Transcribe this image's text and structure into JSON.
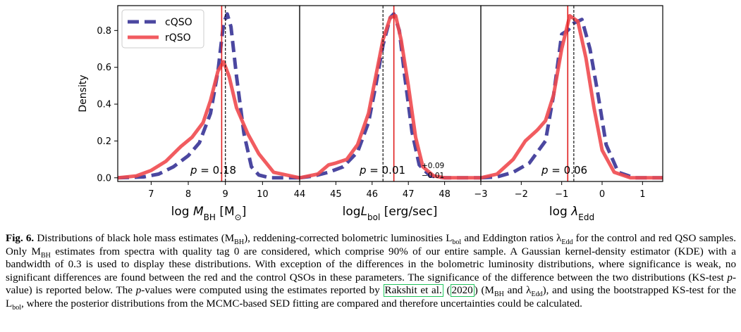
{
  "chart_data": [
    {
      "type": "line",
      "xlabel": "log M_BH [M_sun]",
      "ylabel": "Density",
      "xlim": [
        6.1,
        11.0
      ],
      "ylim": [
        -0.02,
        0.935
      ],
      "xticks": [
        "7",
        "8",
        "9",
        "10"
      ],
      "yticks": [
        "0.0",
        "0.2",
        "0.4",
        "0.6",
        "0.8"
      ],
      "legend": {
        "placement": "top-left",
        "entries": [
          "cQSO",
          "rQSO"
        ]
      },
      "annotation": "p = 0.18",
      "vlines": [
        {
          "series": "cQSO",
          "x": 9.0
        },
        {
          "series": "rQSO",
          "x": 8.9
        }
      ],
      "series": [
        {
          "name": "cQSO",
          "color": "#4b47a0",
          "style": "dashed",
          "x": [
            6.1,
            6.8,
            7.2,
            7.6,
            8.0,
            8.3,
            8.6,
            8.8,
            8.95,
            9.05,
            9.15,
            9.3,
            9.5,
            9.7,
            9.9,
            10.2,
            11.0
          ],
          "y": [
            0.0,
            0.005,
            0.02,
            0.06,
            0.12,
            0.19,
            0.35,
            0.58,
            0.84,
            0.89,
            0.82,
            0.55,
            0.24,
            0.06,
            0.015,
            0.0,
            0.0
          ]
        },
        {
          "name": "rQSO",
          "color": "#f04a4f",
          "style": "solid",
          "x": [
            6.1,
            6.6,
            7.0,
            7.4,
            7.8,
            8.1,
            8.4,
            8.6,
            8.8,
            8.95,
            9.1,
            9.3,
            9.6,
            9.9,
            10.3,
            11.0
          ],
          "y": [
            0.0,
            0.01,
            0.04,
            0.09,
            0.17,
            0.22,
            0.3,
            0.42,
            0.58,
            0.63,
            0.55,
            0.38,
            0.24,
            0.13,
            0.03,
            0.0
          ]
        }
      ]
    },
    {
      "type": "line",
      "xlabel": "log L_bol [erg/sec]",
      "ylabel": "",
      "xlim": [
        44.0,
        49.0
      ],
      "ylim": [
        -0.02,
        0.935
      ],
      "xticks": [
        "44",
        "45",
        "46",
        "47",
        "48"
      ],
      "yticks": [],
      "annotation": "p = 0.01 +0.09 −0.01",
      "vlines": [
        {
          "series": "cQSO",
          "x": 46.3
        },
        {
          "series": "rQSO",
          "x": 46.6
        }
      ],
      "series": [
        {
          "name": "cQSO",
          "color": "#4b47a0",
          "style": "dashed",
          "x": [
            44.0,
            44.4,
            44.8,
            45.2,
            45.6,
            45.9,
            46.1,
            46.3,
            46.5,
            46.6,
            46.75,
            46.9,
            47.1,
            47.3,
            47.6,
            48.0,
            49.0
          ],
          "y": [
            0.0,
            0.01,
            0.03,
            0.06,
            0.14,
            0.3,
            0.5,
            0.72,
            0.87,
            0.89,
            0.8,
            0.55,
            0.25,
            0.07,
            0.01,
            0.0,
            0.0
          ]
        },
        {
          "name": "rQSO",
          "color": "#f04a4f",
          "style": "solid",
          "x": [
            44.0,
            44.5,
            44.8,
            45.0,
            45.3,
            45.6,
            45.9,
            46.1,
            46.3,
            46.5,
            46.65,
            46.8,
            47.0,
            47.2,
            47.4,
            47.7,
            48.0,
            49.0
          ],
          "y": [
            0.0,
            0.02,
            0.07,
            0.08,
            0.1,
            0.18,
            0.35,
            0.55,
            0.75,
            0.87,
            0.88,
            0.75,
            0.5,
            0.22,
            0.06,
            0.01,
            0.0,
            0.0
          ]
        }
      ]
    },
    {
      "type": "line",
      "xlabel": "log λ_Edd",
      "ylabel": "",
      "xlim": [
        -3.0,
        1.5
      ],
      "ylim": [
        -0.02,
        0.935
      ],
      "xticks": [
        "−3",
        "−2",
        "−1",
        "0",
        "1"
      ],
      "yticks": [],
      "annotation": "p = 0.06",
      "vlines": [
        {
          "series": "cQSO",
          "x": -0.7
        },
        {
          "series": "rQSO",
          "x": -0.85
        }
      ],
      "series": [
        {
          "name": "cQSO",
          "color": "#4b47a0",
          "style": "dashed",
          "x": [
            -3.0,
            -2.6,
            -2.2,
            -1.8,
            -1.4,
            -1.2,
            -1.0,
            -0.85,
            -0.7,
            -0.5,
            -0.3,
            -0.1,
            0.1,
            0.4,
            0.8,
            1.5
          ],
          "y": [
            0.0,
            0.005,
            0.03,
            0.08,
            0.2,
            0.45,
            0.78,
            0.8,
            0.84,
            0.86,
            0.7,
            0.45,
            0.18,
            0.03,
            0.0,
            0.0
          ]
        },
        {
          "name": "rQSO",
          "color": "#f04a4f",
          "style": "solid",
          "x": [
            -3.0,
            -2.6,
            -2.2,
            -1.9,
            -1.6,
            -1.4,
            -1.2,
            -1.0,
            -0.8,
            -0.6,
            -0.4,
            -0.2,
            0.0,
            0.3,
            0.7,
            1.5
          ],
          "y": [
            0.0,
            0.02,
            0.1,
            0.2,
            0.26,
            0.31,
            0.45,
            0.7,
            0.88,
            0.85,
            0.65,
            0.38,
            0.15,
            0.03,
            0.0,
            0.0
          ]
        }
      ]
    }
  ],
  "caption": {
    "fig": "Fig. 6.",
    "line1": "Distributions of black hole mass estimates (M",
    "line1b": "), reddening-corrected bolometric luminosities L",
    "line1c": " and Eddington ratios λ",
    "line1d": " for the control and red QSO samples. Only M",
    "line1e": " estimates from spectra with quality tag 0 are considered, which comprise 90% of our entire sample. A Gaussian kernel-density estimator (KDE) with a bandwidth of 0.3 is used to display these distributions. With exception of the differences in the bolometric luminosity distributions, where significance is weak, no significant differences are found between the red and the control QSOs in these parameters. The significance of the difference between the two distributions (KS-test ",
    "pvalue": "p",
    "line1f": "-value) is reported below. The ",
    "line1g": "-values were computed using the estimates reported by ",
    "cite_author": "Rakshit et al.",
    "cite_year": "2020",
    "line1h": " (M",
    "line1i": " and λ",
    "line1j": "), and using the bootstrapped KS-test for the L",
    "line1k": ", where the posterior distributions from the MCMC-based SED fitting are compared and therefore uncertainties could be calculated.",
    "sub_bh": "BH",
    "sub_bol": "bol",
    "sub_edd": "Edd"
  }
}
